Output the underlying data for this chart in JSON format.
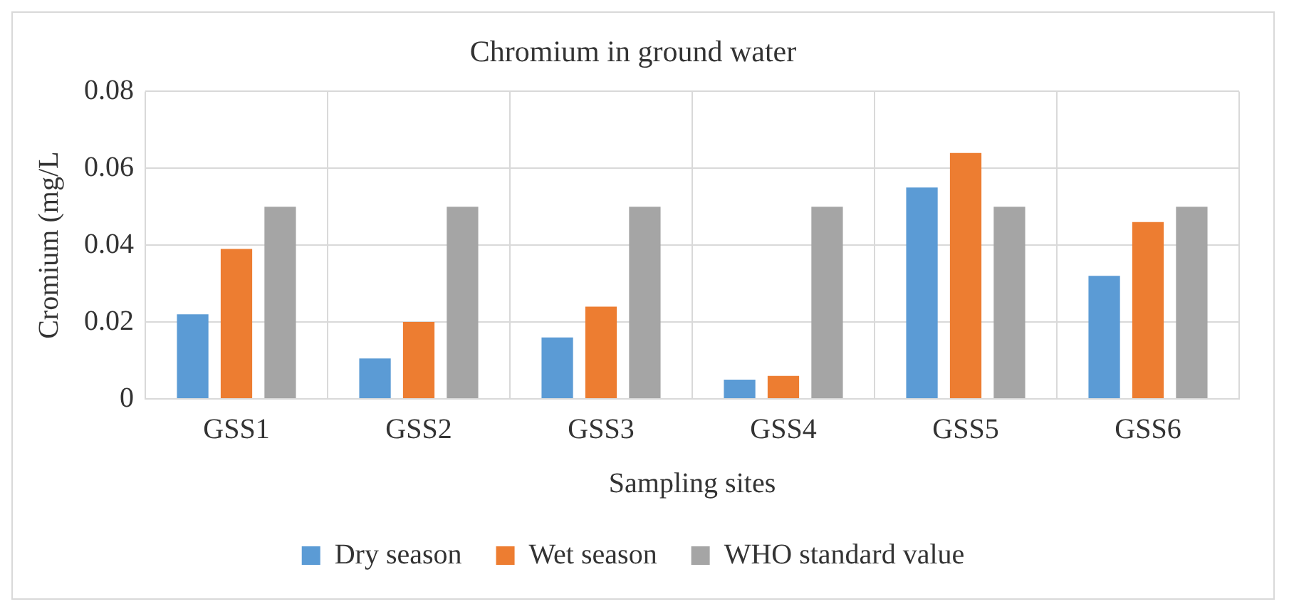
{
  "chart_data": {
    "type": "bar",
    "title": "Chromium in ground water",
    "xlabel": "Sampling sites",
    "ylabel": "Cromium (mg/L",
    "categories": [
      "GSS1",
      "GSS2",
      "GSS3",
      "GSS4",
      "GSS5",
      "GSS6"
    ],
    "series": [
      {
        "name": "Dry season",
        "color": "#5b9bd5",
        "values": [
          0.022,
          0.0105,
          0.016,
          0.005,
          0.055,
          0.032
        ]
      },
      {
        "name": "Wet season",
        "color": "#ed7d31",
        "values": [
          0.039,
          0.02,
          0.024,
          0.006,
          0.064,
          0.046
        ]
      },
      {
        "name": "WHO standard value",
        "color": "#a5a5a5",
        "values": [
          0.05,
          0.05,
          0.05,
          0.05,
          0.05,
          0.05
        ]
      }
    ],
    "ylim": [
      0,
      0.08
    ],
    "yticks": [
      0,
      0.02,
      0.04,
      0.06,
      0.08
    ],
    "grid": true,
    "legend": "bottom"
  }
}
